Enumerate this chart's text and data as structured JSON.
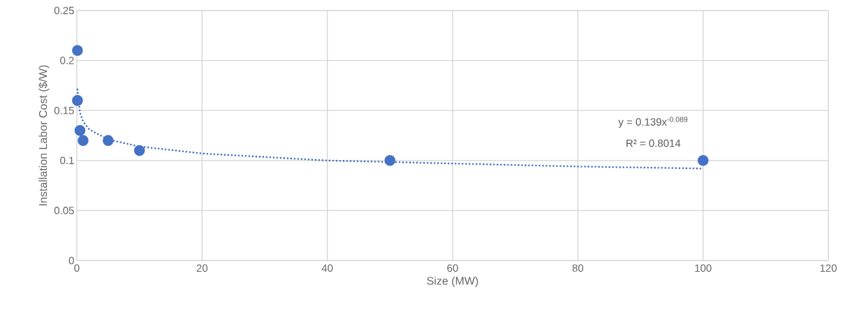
{
  "chart_data": {
    "type": "scatter",
    "xlabel": "Size (MW)",
    "ylabel": "Installation Labor Cost ($/W)",
    "annotations": [
      "y = 0.139x$^{-0.089}$",
      "R² = 0.8014"
    ],
    "series": [
      {
        "type": "scatter",
        "color": "#4472c4",
        "marker": "circle",
        "x": [
          0.1,
          0.1,
          0.5,
          1,
          5,
          10,
          50,
          100
        ],
        "values": [
          0.21,
          0.16,
          0.13,
          0.12,
          0.12,
          0.11,
          0.1,
          0.1
        ]
      },
      {
        "type": "line",
        "color": "#4472c4",
        "line_style": "dotted",
        "marker": "none",
        "x": [
          0.1,
          0.5,
          1,
          2,
          5,
          10,
          20,
          40,
          60,
          80,
          100
        ],
        "values": [
          0.171,
          0.148,
          0.139,
          0.131,
          0.121,
          0.114,
          0.107,
          0.1,
          0.097,
          0.094,
          0.092
        ]
      }
    ],
    "xlim": [
      0,
      120
    ],
    "ylim": [
      0,
      0.25
    ],
    "xticks": [
      0,
      20,
      40,
      60,
      80,
      100,
      120
    ],
    "yticks": [
      0,
      0.05,
      0.1,
      0.15,
      0.2,
      0.25
    ],
    "grid": true
  }
}
